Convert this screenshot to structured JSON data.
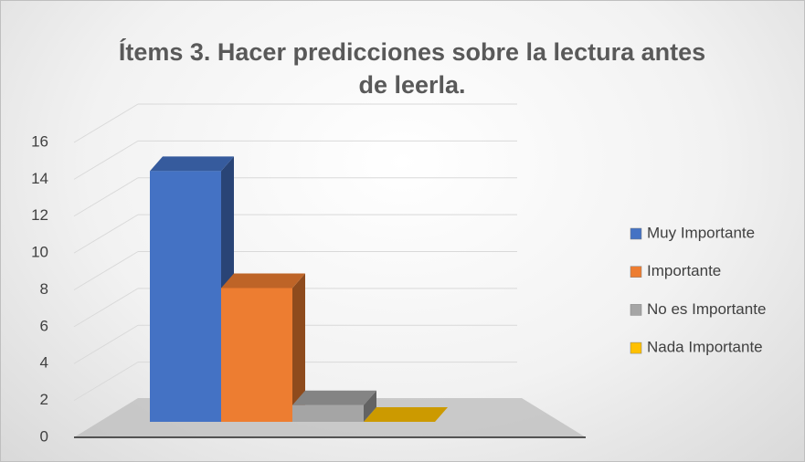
{
  "chart_data": {
    "type": "bar3d",
    "title": "Ítems 3. Hacer predicciones sobre la lectura antes de leerla.",
    "categories": [
      "Muy Importante",
      "Importante",
      "No es Importante",
      "Nada Importante"
    ],
    "values": [
      15,
      8,
      1,
      0
    ],
    "colors": [
      "#4472c4",
      "#ed7d31",
      "#a5a5a5",
      "#ffc000"
    ],
    "ylim": [
      0,
      16
    ],
    "yticks": [
      0,
      2,
      4,
      6,
      8,
      10,
      12,
      14,
      16
    ],
    "grid": true,
    "legend": "right"
  }
}
